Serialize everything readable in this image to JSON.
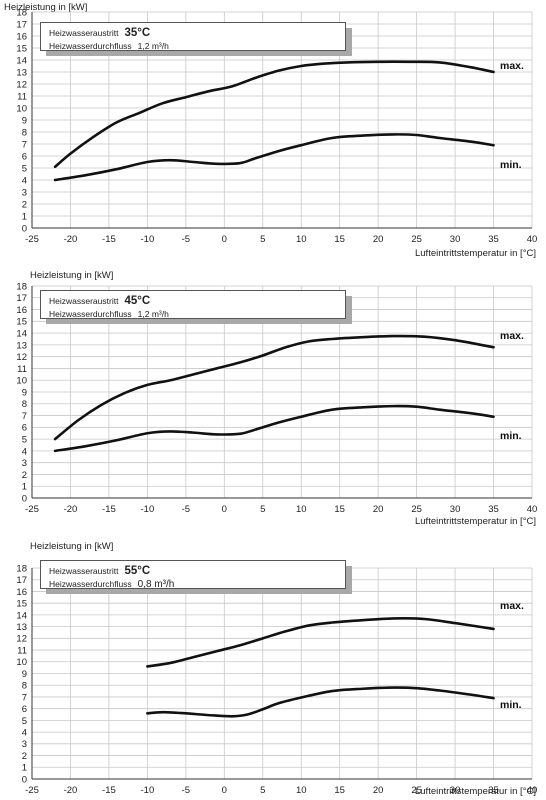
{
  "chart_data": [
    {
      "type": "line",
      "ylabel": "Heizleistung in [kW]",
      "xlabel": "Lufteintrittstemperatur in [°C]",
      "xlim": [
        -25,
        40
      ],
      "ylim": [
        0,
        18
      ],
      "xticks": [
        -25,
        -20,
        -15,
        -10,
        -5,
        0,
        5,
        10,
        15,
        20,
        25,
        30,
        35,
        40
      ],
      "yticks": [
        0,
        1,
        2,
        3,
        4,
        5,
        6,
        7,
        8,
        9,
        10,
        11,
        12,
        13,
        14,
        15,
        16,
        17,
        18
      ],
      "grid": true,
      "legend": {
        "row1_label": "Heizwasseraustritt",
        "row1_value": "35°C",
        "row2_label": "Heizwasserdurchfluss",
        "row2_value": "1,2 m³/h"
      },
      "series": [
        {
          "name": "max.",
          "x": [
            -22,
            -20,
            -17,
            -14,
            -11,
            -8,
            -5,
            -2,
            1,
            4,
            7,
            10,
            13,
            16,
            20,
            24,
            28,
            32,
            35
          ],
          "y": [
            5.1,
            6.2,
            7.6,
            8.8,
            9.6,
            10.4,
            10.9,
            11.4,
            11.8,
            12.5,
            13.1,
            13.5,
            13.7,
            13.8,
            13.85,
            13.85,
            13.8,
            13.4,
            13.0
          ]
        },
        {
          "name": "min.",
          "x": [
            -22,
            -18,
            -14,
            -10,
            -7,
            -4,
            -1,
            2,
            4,
            7,
            10,
            14,
            18,
            22,
            25,
            28,
            32,
            35
          ],
          "y": [
            4.0,
            4.4,
            4.9,
            5.5,
            5.65,
            5.5,
            5.35,
            5.4,
            5.8,
            6.4,
            6.9,
            7.5,
            7.7,
            7.8,
            7.75,
            7.5,
            7.2,
            6.9
          ]
        }
      ]
    },
    {
      "type": "line",
      "ylabel": "Heizleistung in [kW]",
      "xlabel": "Lufteintrittstemperatur in [°C]",
      "xlim": [
        -25,
        40
      ],
      "ylim": [
        0,
        18
      ],
      "xticks": [
        -25,
        -20,
        -15,
        -10,
        -5,
        0,
        5,
        10,
        15,
        20,
        25,
        30,
        35,
        40
      ],
      "yticks": [
        0,
        1,
        2,
        3,
        4,
        5,
        6,
        7,
        8,
        9,
        10,
        11,
        12,
        13,
        14,
        15,
        16,
        17,
        18
      ],
      "grid": true,
      "legend": {
        "row1_label": "Heizwasseraustritt",
        "row1_value": "45°C",
        "row2_label": "Heizwasserdurchfluss",
        "row2_value": "1,2 m³/h"
      },
      "series": [
        {
          "name": "max.",
          "x": [
            -22,
            -19,
            -16,
            -13,
            -10,
            -7,
            -4,
            -1,
            2,
            5,
            8,
            11,
            14,
            18,
            22,
            26,
            30,
            35
          ],
          "y": [
            5.0,
            6.6,
            7.9,
            8.9,
            9.6,
            10.0,
            10.5,
            11.0,
            11.5,
            12.1,
            12.8,
            13.3,
            13.5,
            13.65,
            13.75,
            13.7,
            13.4,
            12.8
          ]
        },
        {
          "name": "min.",
          "x": [
            -22,
            -18,
            -14,
            -10,
            -7,
            -4,
            -1,
            2,
            4,
            7,
            10,
            14,
            18,
            22,
            25,
            28,
            32,
            35
          ],
          "y": [
            4.0,
            4.4,
            4.9,
            5.5,
            5.65,
            5.55,
            5.4,
            5.45,
            5.8,
            6.4,
            6.9,
            7.5,
            7.7,
            7.8,
            7.75,
            7.5,
            7.2,
            6.9
          ]
        }
      ]
    },
    {
      "type": "line",
      "ylabel": "Heizleistung in [kW]",
      "xlabel": "Lufteintrittstemperatur in [°C]",
      "xlim": [
        -25,
        40
      ],
      "ylim": [
        0,
        18
      ],
      "xticks": [
        -25,
        -20,
        -15,
        -10,
        -5,
        0,
        5,
        10,
        15,
        20,
        25,
        30,
        35,
        40
      ],
      "yticks": [
        0,
        1,
        2,
        3,
        4,
        5,
        6,
        7,
        8,
        9,
        10,
        11,
        12,
        13,
        14,
        15,
        16,
        17,
        18
      ],
      "grid": true,
      "legend": {
        "row1_label": "Heizwasseraustritt",
        "row1_value": "55°C",
        "row2_label": "Heizwasserdurchfluss",
        "row2_value": "0,8 m³/h"
      },
      "series": [
        {
          "name": "max.",
          "x": [
            -10,
            -7,
            -4,
            -1,
            2,
            5,
            8,
            11,
            14,
            18,
            22,
            26,
            30,
            35
          ],
          "y": [
            9.6,
            9.9,
            10.4,
            10.9,
            11.4,
            12.0,
            12.6,
            13.1,
            13.35,
            13.55,
            13.7,
            13.65,
            13.3,
            12.8
          ]
        },
        {
          "name": "min.",
          "x": [
            -10,
            -8,
            -5,
            -2,
            1,
            3,
            5,
            7,
            10,
            14,
            18,
            22,
            25,
            28,
            32,
            35
          ],
          "y": [
            5.6,
            5.7,
            5.6,
            5.45,
            5.35,
            5.5,
            5.95,
            6.45,
            6.95,
            7.5,
            7.7,
            7.8,
            7.75,
            7.55,
            7.2,
            6.9
          ]
        }
      ]
    }
  ]
}
